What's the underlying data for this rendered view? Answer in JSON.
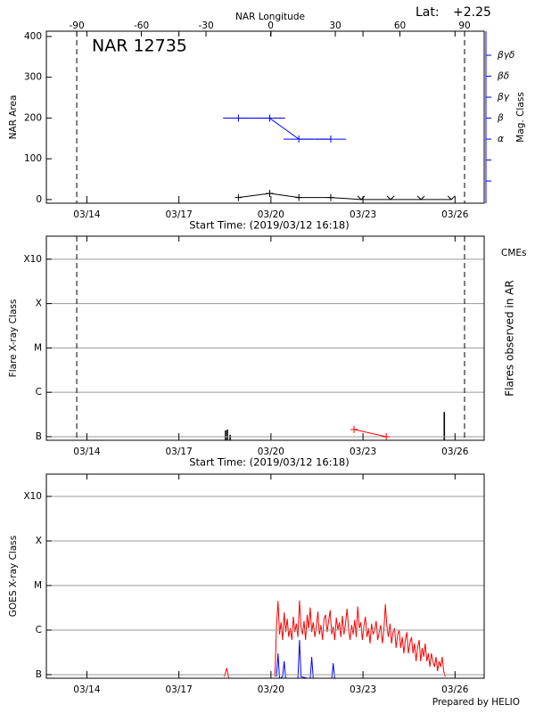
{
  "footer": "Prepared by HELIO",
  "chart_data": [
    {
      "type": "line",
      "title": "NAR 12735",
      "x2label": "NAR Longitude",
      "lat_label": "Lat:",
      "lat_value": "+2.25",
      "xlabel": "Start Time: (2019/03/12 16:18)",
      "ylabel": "NAR Area",
      "y2label": "Mag. Class",
      "xlim": [
        0,
        14.27
      ],
      "xticks": [
        {
          "value": 1.32,
          "label": "03/14"
        },
        {
          "value": 4.32,
          "label": "03/17"
        },
        {
          "value": 7.32,
          "label": "03/20"
        },
        {
          "value": 10.32,
          "label": "03/23"
        },
        {
          "value": 13.32,
          "label": "03/26"
        }
      ],
      "x2lim": [
        -104.1,
        99.1
      ],
      "x2ticks": [
        -90,
        -60,
        -30,
        0,
        30,
        60,
        90
      ],
      "ylim": [
        -9,
        413
      ],
      "yticks": [
        0,
        100,
        200,
        300,
        400
      ],
      "y2lim": [
        -2.06,
        6.15
      ],
      "y2ticks": [
        {
          "value": -1,
          "label": null
        },
        {
          "value": 0,
          "label": null
        },
        {
          "value": 1,
          "label": "α"
        },
        {
          "value": 2,
          "label": "β"
        },
        {
          "value": 3,
          "label": "βγ"
        },
        {
          "value": 4,
          "label": "βδ"
        },
        {
          "value": 5,
          "label": "βγδ"
        }
      ],
      "limb_longitudes": [
        -90,
        90
      ],
      "series": [
        {
          "color": "#000000",
          "marker": "+",
          "x": [
            6.26,
            7.28,
            8.23,
            9.27,
            10.26,
            11.22,
            12.21,
            13.2
          ],
          "values": [
            5,
            15,
            5,
            5,
            0,
            0,
            0,
            0
          ]
        },
        {
          "color": "#0000ff",
          "axis": "y2",
          "marker": "+",
          "x": [
            6.26,
            7.28,
            8.23,
            9.27
          ],
          "values": [
            2,
            2,
            1,
            1
          ],
          "xerr": [
            0.5,
            0.5,
            0.5,
            0.5
          ]
        }
      ]
    },
    {
      "type": "bar",
      "xlabel": "Start Time: (2019/03/12 16:18)",
      "ylabel": "Flare X-ray Class",
      "y2label": "Flares observed in AR",
      "xlim": [
        0,
        14.27
      ],
      "xticks": [
        {
          "value": 1.32,
          "label": "03/14"
        },
        {
          "value": 4.32,
          "label": "03/17"
        },
        {
          "value": 7.32,
          "label": "03/20"
        },
        {
          "value": 10.32,
          "label": "03/23"
        },
        {
          "value": 13.32,
          "label": "03/26"
        }
      ],
      "log_scale": true,
      "ylim": [
        8.3e-08,
        0.0033
      ],
      "yticks": [
        {
          "value": 1e-07,
          "label": "B"
        },
        {
          "value": 1e-06,
          "label": "C"
        },
        {
          "value": 1e-05,
          "label": "M"
        },
        {
          "value": 0.0001,
          "label": "X"
        },
        {
          "value": 0.001,
          "label": "X10"
        }
      ],
      "grid": true,
      "limb_x": [
        0.99,
        13.63
      ],
      "series": [
        {
          "color": "#000000",
          "x": [
            5.84,
            5.9,
            5.99,
            12.97
          ],
          "values": [
            1.38e-07,
            1.45e-07,
            1.1e-07,
            3.6e-07
          ]
        },
        {
          "name": "CMEs",
          "color": "#ff0000",
          "type": "line",
          "marker": "+",
          "x": [
            10.03,
            11.08
          ],
          "values": [
            1.45e-07,
            1e-07
          ]
        }
      ]
    },
    {
      "type": "line",
      "ylabel": "GOES X-ray Class",
      "xlim": [
        0,
        14.27
      ],
      "xticks": [
        {
          "value": 1.32,
          "label": "03/14"
        },
        {
          "value": 4.32,
          "label": "03/17"
        },
        {
          "value": 7.32,
          "label": "03/20"
        },
        {
          "value": 10.32,
          "label": "03/23"
        },
        {
          "value": 13.32,
          "label": "03/26"
        }
      ],
      "log_scale": true,
      "ylim": [
        8.3e-08,
        0.00316
      ],
      "yticks": [
        {
          "value": 1e-07,
          "label": "B"
        },
        {
          "value": 1e-06,
          "label": "C"
        },
        {
          "value": 1e-05,
          "label": "M"
        },
        {
          "value": 0.0001,
          "label": "X"
        },
        {
          "value": 0.001,
          "label": "X10"
        }
      ],
      "grid": true,
      "series": [
        {
          "color": "#ff0000",
          "x": [
            5.8,
            5.88,
            5.95,
            null,
            7.45,
            7.5,
            7.55,
            7.6,
            7.65,
            7.7,
            7.75,
            7.8,
            7.85,
            7.9,
            7.95,
            8.0,
            8.05,
            8.1,
            8.15,
            8.2,
            8.25,
            8.3,
            8.35,
            8.4,
            8.45,
            8.5,
            8.55,
            8.6,
            8.65,
            8.7,
            8.75,
            8.8,
            8.85,
            8.9,
            8.95,
            9.0,
            9.05,
            9.1,
            9.15,
            9.2,
            9.25,
            9.3,
            9.35,
            9.4,
            9.45,
            9.5,
            9.55,
            9.6,
            9.65,
            9.7,
            9.75,
            9.8,
            9.85,
            9.9,
            9.95,
            10.0,
            10.05,
            10.1,
            10.15,
            10.2,
            10.25,
            10.3,
            10.35,
            10.4,
            10.45,
            10.5,
            10.55,
            10.6,
            10.65,
            10.7,
            10.75,
            10.8,
            10.85,
            10.9,
            10.95,
            11.0,
            11.05,
            11.1,
            11.15,
            11.2,
            11.25,
            11.3,
            11.35,
            11.4,
            11.45,
            11.5,
            11.55,
            11.6,
            11.65,
            11.7,
            11.75,
            11.8,
            11.85,
            11.9,
            11.95,
            12.0,
            12.05,
            12.1,
            12.15,
            12.2,
            12.25,
            12.3,
            12.35,
            12.4,
            12.45,
            12.5,
            12.55,
            12.6,
            12.65,
            12.7,
            12.75,
            12.8,
            12.85,
            12.9,
            12.95,
            13.0
          ],
          "values": [
            9e-08,
            1.4e-07,
            8e-08,
            null,
            9e-08,
            1.2e-06,
            4.5e-06,
            8e-07,
            1.5e-06,
            6e-07,
            2.5e-06,
            9e-07,
            1.8e-06,
            7e-07,
            1.1e-06,
            6e-07,
            2e-06,
            9e-07,
            1.4e-06,
            7e-07,
            4.6e-06,
            1.2e-06,
            8e-07,
            1.6e-06,
            6e-07,
            2.2e-06,
            1.1e-06,
            3.2e-06,
            9e-07,
            1.5e-06,
            7e-07,
            1.2e-06,
            2.6e-06,
            8e-07,
            1.3e-06,
            6e-07,
            1.8e-06,
            2.2e-06,
            9e-07,
            1.6e-06,
            2.8e-06,
            8e-07,
            1.2e-06,
            6e-07,
            1.9e-06,
            1e-06,
            1.5e-06,
            7e-07,
            2.1e-06,
            8e-07,
            1.4e-06,
            3e-06,
            1.1e-06,
            6e-07,
            1.3e-06,
            8e-07,
            1.7e-06,
            7e-07,
            3.4e-06,
            1.1e-06,
            1.5e-06,
            6e-07,
            1.2e-06,
            2e-06,
            7e-07,
            1.1e-06,
            5e-07,
            1.4e-06,
            8e-07,
            1e-06,
            1.6e-06,
            6e-07,
            9e-07,
            1.3e-06,
            5e-07,
            1e-06,
            3.8e-06,
            1.2e-06,
            7e-07,
            1.4e-06,
            5e-07,
            9e-07,
            1.1e-06,
            4e-07,
            8e-07,
            1e-06,
            4e-07,
            7e-07,
            3e-07,
            6e-07,
            9e-07,
            3e-07,
            5e-07,
            7e-07,
            3e-07,
            5e-07,
            2e-07,
            4e-07,
            6e-07,
            2e-07,
            4e-07,
            2.5e-07,
            5e-07,
            2e-07,
            3e-07,
            1.5e-07,
            3e-07,
            2e-07,
            1.5e-07,
            2.5e-07,
            1.2e-07,
            2e-07,
            1.5e-07,
            2.5e-07,
            1.2e-07,
            9e-08
          ]
        },
        {
          "color": "#0000ff",
          "x": [
            7.5,
            7.55,
            7.6,
            7.7,
            7.75,
            7.8,
            8.2,
            8.25,
            8.3,
            8.6,
            8.65,
            8.7,
            9.3,
            9.35,
            9.4
          ],
          "values": [
            9e-08,
            3e-07,
            8e-08,
            9e-08,
            2e-07,
            8e-08,
            8e-08,
            6e-07,
            9e-08,
            8e-08,
            2.5e-07,
            8e-08,
            8e-08,
            1.8e-07,
            8e-08
          ]
        }
      ]
    }
  ]
}
